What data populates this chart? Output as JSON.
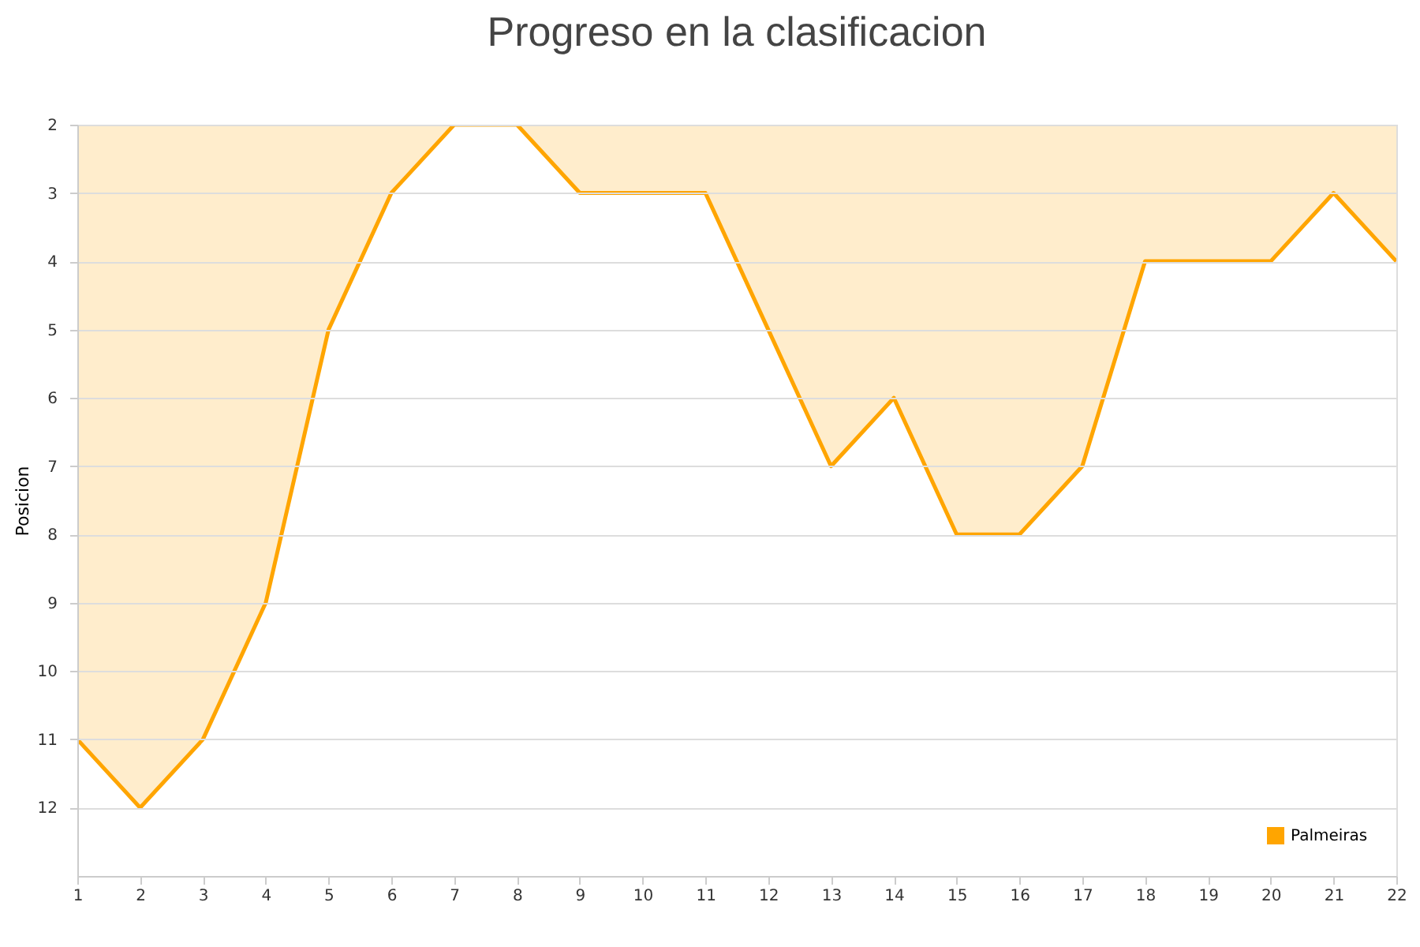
{
  "chart_data": {
    "type": "area",
    "title": "Progreso en la clasificacion",
    "ylabel": "Posicion",
    "x": [
      1,
      2,
      3,
      4,
      5,
      6,
      7,
      8,
      9,
      10,
      11,
      12,
      13,
      14,
      15,
      16,
      17,
      18,
      19,
      20,
      21,
      22
    ],
    "series": [
      {
        "name": "Palmeiras",
        "color": "#ffa500",
        "values": [
          11,
          12,
          11,
          9,
          5,
          3,
          2,
          2,
          3,
          3,
          3,
          5,
          7,
          6,
          8,
          8,
          7,
          4,
          4,
          4,
          3,
          4
        ]
      }
    ],
    "xlim": [
      1,
      22
    ],
    "xticks": [
      1,
      2,
      3,
      4,
      5,
      6,
      7,
      8,
      9,
      10,
      11,
      12,
      13,
      14,
      15,
      16,
      17,
      18,
      19,
      20,
      21,
      22
    ],
    "ylim": [
      13,
      2
    ],
    "yticks": [
      2,
      3,
      4,
      5,
      6,
      7,
      8,
      9,
      10,
      11,
      12
    ],
    "grid": "y",
    "legend": "bottom right"
  }
}
